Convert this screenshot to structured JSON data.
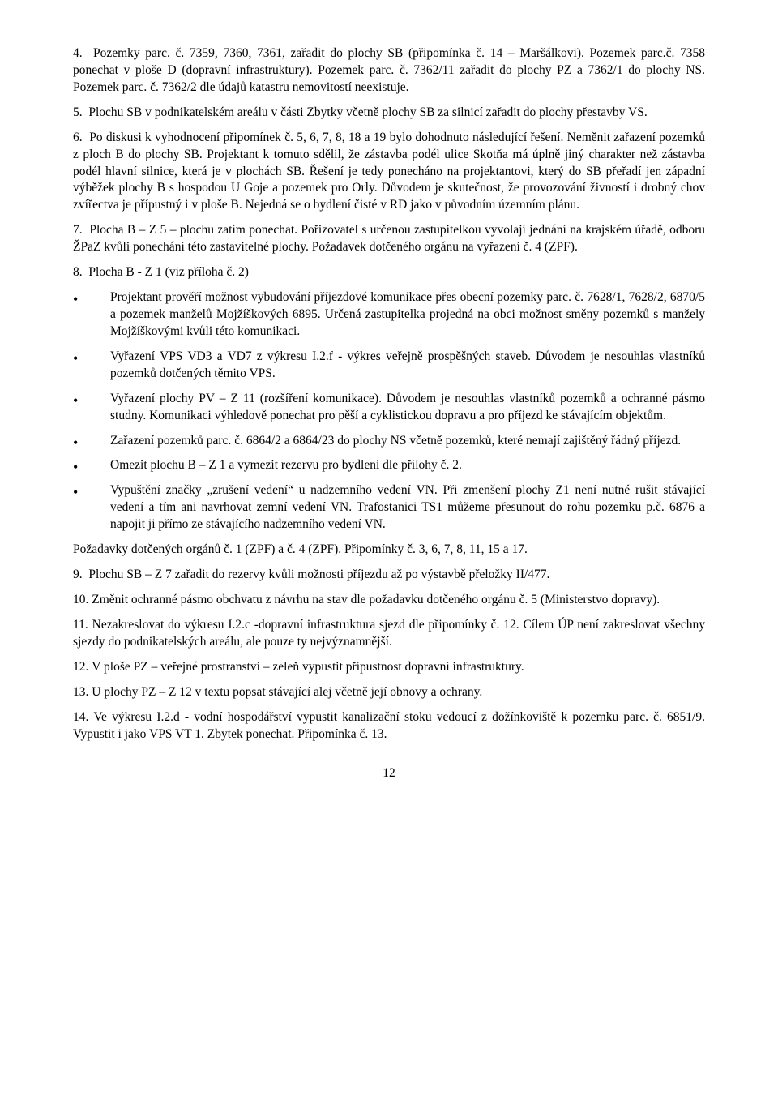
{
  "paragraphs": {
    "p1": "4.  Pozemky parc. č. 7359, 7360, 7361, zařadit do plochy SB (připomínka č. 14 – Maršálkovi). Pozemek parc.č. 7358 ponechat v ploše D (dopravní infrastruktury). Pozemek parc. č. 7362/11 zařadit do plochy PZ a 7362/1 do plochy NS. Pozemek parc. č. 7362/2 dle údajů katastru nemovitostí neexistuje.",
    "p2": "5.  Plochu SB v podnikatelském areálu v části Zbytky včetně plochy SB za silnicí zařadit do plochy přestavby VS.",
    "p3": "6.  Po diskusi k vyhodnocení připomínek č. 5, 6, 7, 8, 18 a 19 bylo dohodnuto následující řešení. Neměnit zařazení pozemků z ploch B do plochy SB. Projektant k tomuto sdělil, že zástavba podél ulice Skotňa má úplně jiný charakter než zástavba podél hlavní silnice, která je v plochách SB. Řešení je tedy ponecháno na projektantovi, který do SB přeřadí jen západní výběžek plochy B s hospodou U Goje a pozemek pro Orly. Důvodem je skutečnost, že provozování živností i drobný chov zvířectva je přípustný i v ploše B. Nejedná se o bydlení čisté v RD jako v původním územním plánu.",
    "p4": "7.  Plocha B – Z 5 – plochu zatím ponechat. Pořizovatel s určenou zastupitelkou vyvolají jednání na krajském úřadě, odboru ŽPaZ kvůli ponechání této zastavitelné plochy. Požadavek dotčeného orgánu na vyřazení č. 4 (ZPF).",
    "p5": "8.  Plocha B - Z 1 (viz příloha č. 2)",
    "b1": "Projektant prověří možnost vybudování příjezdové komunikace přes obecní pozemky parc. č. 7628/1, 7628/2, 6870/5 a pozemek manželů Mojžíškových 6895. Určená zastupitelka projedná na obci možnost směny pozemků s manžely Mojžíškovými kvůli této komunikaci.",
    "b2": "Vyřazení VPS VD3 a VD7 z výkresu I.2.f - výkres veřejně prospěšných staveb. Důvodem je nesouhlas vlastníků pozemků dotčených těmito VPS.",
    "b3": "Vyřazení plochy PV – Z 11 (rozšíření komunikace). Důvodem je nesouhlas vlastníků pozemků a ochranné pásmo studny. Komunikaci výhledově ponechat pro pěší a cyklistickou dopravu a pro příjezd ke stávajícím objektům.",
    "b4": "Zařazení pozemků parc. č. 6864/2 a 6864/23 do plochy NS včetně pozemků, které nemají zajištěný řádný příjezd.",
    "b5": "Omezit plochu B – Z 1 a vymezit rezervu pro bydlení dle přílohy č. 2.",
    "b6": "Vypuštění značky „zrušení vedení“ u nadzemního vedení VN. Při zmenšení plochy Z1 není nutné rušit stávající vedení a tím ani navrhovat zemní vedení VN. Trafostanici TS1 můžeme přesunout do rohu pozemku p.č. 6876 a napojit ji přímo ze stávajícího nadzemního vedení VN.",
    "p6": "Požadavky dotčených orgánů č. 1 (ZPF) a č. 4 (ZPF). Připomínky č. 3, 6, 7, 8, 11, 15 a 17.",
    "p7": "9.  Plochu SB – Z 7 zařadit do rezervy kvůli možnosti příjezdu až po výstavbě přeložky II/477.",
    "p8": "10. Změnit ochranné pásmo obchvatu z návrhu na stav dle požadavku dotčeného orgánu č. 5 (Ministerstvo dopravy).",
    "p9": "11. Nezakreslovat do výkresu I.2.c -dopravní infrastruktura sjezd dle připomínky č. 12. Cílem ÚP není zakreslovat všechny sjezdy do podnikatelských areálu, ale pouze ty nejvýznamnější.",
    "p10": "12. V ploše PZ – veřejné prostranství – zeleň vypustit přípustnost dopravní infrastruktury.",
    "p11": "13. U plochy PZ – Z 12 v textu popsat stávající alej včetně její obnovy a ochrany.",
    "p12": "14. Ve výkresu I.2.d - vodní hospodářství vypustit kanalizační stoku vedoucí z dožínkoviště k pozemku parc. č. 6851/9. Vypustit i jako VPS VT 1. Zbytek ponechat. Připomínka č. 13."
  },
  "pageNumber": "12"
}
